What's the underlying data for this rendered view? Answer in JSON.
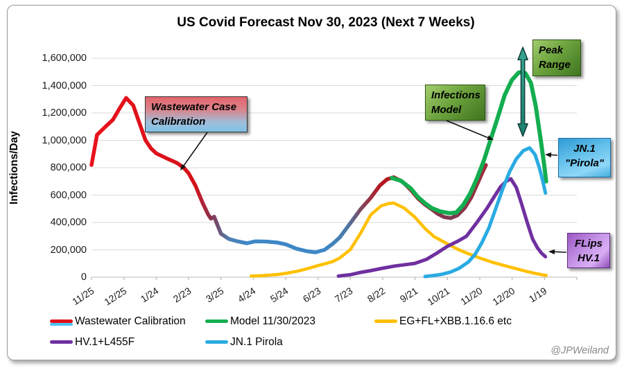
{
  "window": {
    "title": "US Covid Forecast Nov 30, 2023 (Next 7 Weeks)",
    "watermark": "@JPWeiland"
  },
  "chart_data": {
    "type": "line",
    "title": "US Covid Forecast Nov 30, 2023 (Next 7 Weeks)",
    "xlabel": "",
    "ylabel": "Infections/Day",
    "ylim": [
      0,
      1600000
    ],
    "y_tick_step": 200000,
    "grid": true,
    "legend_position": "bottom",
    "x_units": "months since the 11/25 tick (30-day categories)",
    "x_tick_labels": [
      "11/25",
      "12/25",
      "1/24",
      "2/23",
      "3/25",
      "4/24",
      "5/24",
      "6/23",
      "7/23",
      "8/22",
      "9/21",
      "10/21",
      "11/20",
      "12/20",
      "1/19"
    ],
    "series": [
      {
        "name": "Wastewater Calibration",
        "color": "multicolor-gradient",
        "gradient_stops": [
          [
            0,
            "#e8111c"
          ],
          [
            0.26,
            "#d6121a"
          ],
          [
            0.304,
            "#8a3350"
          ],
          [
            0.348,
            "#4f7fae"
          ],
          [
            0.392,
            "#3e88c6"
          ],
          [
            0.594,
            "#3e88c6"
          ],
          [
            0.647,
            "#4a7aa8"
          ],
          [
            0.682,
            "#7c4a62"
          ],
          [
            0.726,
            "#b01c28"
          ],
          [
            0.787,
            "#c00712"
          ],
          [
            0.822,
            "#b41224"
          ],
          [
            0.866,
            "#8f3048"
          ],
          [
            0.91,
            "#7c3a52"
          ],
          [
            1,
            "#9f2c3c"
          ]
        ],
        "points": [
          [
            0,
            820000
          ],
          [
            0.17,
            1040000
          ],
          [
            0.43,
            1100000
          ],
          [
            0.66,
            1150000
          ],
          [
            0.86,
            1230000
          ],
          [
            1.07,
            1310000
          ],
          [
            1.29,
            1255000
          ],
          [
            1.46,
            1140000
          ],
          [
            1.67,
            1000000
          ],
          [
            1.84,
            940000
          ],
          [
            2,
            905000
          ],
          [
            2.31,
            870000
          ],
          [
            2.64,
            835000
          ],
          [
            2.85,
            800000
          ],
          [
            3,
            760000
          ],
          [
            3.21,
            670000
          ],
          [
            3.43,
            545000
          ],
          [
            3.6,
            460000
          ],
          [
            3.69,
            428000
          ],
          [
            3.79,
            442000
          ],
          [
            4,
            318000
          ],
          [
            4.24,
            280000
          ],
          [
            4.5,
            263000
          ],
          [
            4.8,
            248000
          ],
          [
            5.06,
            262000
          ],
          [
            5.42,
            260000
          ],
          [
            5.74,
            253000
          ],
          [
            6,
            240000
          ],
          [
            6.34,
            208000
          ],
          [
            6.66,
            190000
          ],
          [
            6.92,
            182000
          ],
          [
            7.2,
            200000
          ],
          [
            7.46,
            245000
          ],
          [
            7.67,
            290000
          ],
          [
            8,
            395000
          ],
          [
            8.31,
            495000
          ],
          [
            8.63,
            580000
          ],
          [
            8.91,
            670000
          ],
          [
            9.13,
            715000
          ],
          [
            9.34,
            730000
          ],
          [
            9.6,
            700000
          ],
          [
            9.86,
            640000
          ],
          [
            10.09,
            575000
          ],
          [
            10.31,
            530000
          ],
          [
            10.52,
            495000
          ],
          [
            10.71,
            462000
          ],
          [
            10.89,
            440000
          ],
          [
            11.1,
            432000
          ],
          [
            11.31,
            452000
          ],
          [
            11.53,
            505000
          ],
          [
            11.74,
            585000
          ],
          [
            11.96,
            700000
          ],
          [
            12.09,
            770000
          ],
          [
            12.19,
            820000
          ]
        ]
      },
      {
        "name": "Model 11/30/2023",
        "color": "#14ad50",
        "points": [
          [
            9.28,
            725000
          ],
          [
            9.56,
            705000
          ],
          [
            9.86,
            650000
          ],
          [
            10.09,
            585000
          ],
          [
            10.31,
            540000
          ],
          [
            10.52,
            505000
          ],
          [
            10.78,
            480000
          ],
          [
            11.06,
            468000
          ],
          [
            11.27,
            472000
          ],
          [
            11.48,
            525000
          ],
          [
            11.7,
            610000
          ],
          [
            11.91,
            720000
          ],
          [
            12.13,
            855000
          ],
          [
            12.34,
            1010000
          ],
          [
            12.56,
            1170000
          ],
          [
            12.77,
            1330000
          ],
          [
            12.99,
            1440000
          ],
          [
            13.2,
            1495000
          ],
          [
            13.31,
            1500000
          ],
          [
            13.41,
            1490000
          ],
          [
            13.58,
            1420000
          ],
          [
            13.73,
            1250000
          ],
          [
            13.88,
            1010000
          ],
          [
            13.99,
            820000
          ],
          [
            14.05,
            700000
          ]
        ]
      },
      {
        "name": "EG+FL+XBB.1.16.6 etc",
        "color": "#ffc000",
        "points": [
          [
            4.93,
            8000
          ],
          [
            5.31,
            12000
          ],
          [
            5.74,
            20000
          ],
          [
            6,
            28000
          ],
          [
            6.39,
            45000
          ],
          [
            6.71,
            65000
          ],
          [
            7,
            85000
          ],
          [
            7.24,
            100000
          ],
          [
            7.46,
            115000
          ],
          [
            7.67,
            140000
          ],
          [
            8,
            202000
          ],
          [
            8.31,
            319000
          ],
          [
            8.63,
            456000
          ],
          [
            8.95,
            521000
          ],
          [
            9.17,
            538000
          ],
          [
            9.34,
            542000
          ],
          [
            9.66,
            506000
          ],
          [
            9.99,
            440000
          ],
          [
            10.31,
            355000
          ],
          [
            10.6,
            294000
          ],
          [
            10.99,
            245000
          ],
          [
            11.31,
            205000
          ],
          [
            11.64,
            172000
          ],
          [
            12,
            140000
          ],
          [
            12.38,
            110000
          ],
          [
            12.71,
            88000
          ],
          [
            13.03,
            68000
          ],
          [
            13.35,
            48000
          ],
          [
            13.67,
            30000
          ],
          [
            13.99,
            15000
          ],
          [
            14.05,
            13000
          ]
        ]
      },
      {
        "name": "HV.1+L455F",
        "color": "#7030a0",
        "points": [
          [
            7.63,
            8000
          ],
          [
            8,
            18000
          ],
          [
            8.31,
            35000
          ],
          [
            8.63,
            48000
          ],
          [
            9,
            66000
          ],
          [
            9.38,
            82000
          ],
          [
            9.71,
            92000
          ],
          [
            9.99,
            101000
          ],
          [
            10.35,
            130000
          ],
          [
            10.67,
            175000
          ],
          [
            10.99,
            225000
          ],
          [
            11.31,
            262000
          ],
          [
            11.59,
            300000
          ],
          [
            11.91,
            400000
          ],
          [
            12.23,
            506000
          ],
          [
            12.45,
            590000
          ],
          [
            12.64,
            660000
          ],
          [
            12.81,
            700000
          ],
          [
            12.96,
            719000
          ],
          [
            13.13,
            655000
          ],
          [
            13.28,
            545000
          ],
          [
            13.46,
            405000
          ],
          [
            13.63,
            280000
          ],
          [
            13.78,
            215000
          ],
          [
            13.91,
            175000
          ],
          [
            14.03,
            150000
          ]
        ]
      },
      {
        "name": "JN.1 Pirola",
        "color": "#29abe2",
        "points": [
          [
            10.31,
            5000
          ],
          [
            10.56,
            12000
          ],
          [
            10.84,
            22000
          ],
          [
            11.1,
            38000
          ],
          [
            11.36,
            65000
          ],
          [
            11.64,
            110000
          ],
          [
            11.85,
            165000
          ],
          [
            12.06,
            250000
          ],
          [
            12.28,
            360000
          ],
          [
            12.49,
            500000
          ],
          [
            12.71,
            645000
          ],
          [
            12.92,
            770000
          ],
          [
            13.13,
            865000
          ],
          [
            13.35,
            925000
          ],
          [
            13.54,
            945000
          ],
          [
            13.71,
            895000
          ],
          [
            13.84,
            800000
          ],
          [
            13.95,
            700000
          ],
          [
            14.03,
            615000
          ]
        ]
      }
    ],
    "peak_range_arrow": {
      "x_month": 13.33,
      "value_from": 1030000,
      "value_to": 1680000
    }
  },
  "legend": {
    "items": [
      {
        "label": "Wastewater Calibration",
        "swatch": [
          "#e0101a",
          "#4fc3f7"
        ]
      },
      {
        "label": "Model 11/30/2023",
        "swatch": [
          "#14ad50"
        ]
      },
      {
        "label": "EG+FL+XBB.1.16.6 etc",
        "swatch": [
          "#ffc000"
        ]
      },
      {
        "label": "HV.1+L455F",
        "swatch": [
          "#7030a0"
        ]
      },
      {
        "label": "JN.1 Pirola",
        "swatch": [
          "#29abe2"
        ]
      }
    ]
  },
  "annotations": {
    "wastewater": {
      "line1": "Wastewater Case",
      "line2": "Calibration"
    },
    "infections": {
      "line1": "Infections",
      "line2": "Model"
    },
    "peak": {
      "line1": "Peak",
      "line2": "Range"
    },
    "jn1": {
      "line1": "JN.1",
      "line2": "\"Pirola\""
    },
    "flips": {
      "line1": "FLips",
      "line2": "HV.1"
    }
  }
}
